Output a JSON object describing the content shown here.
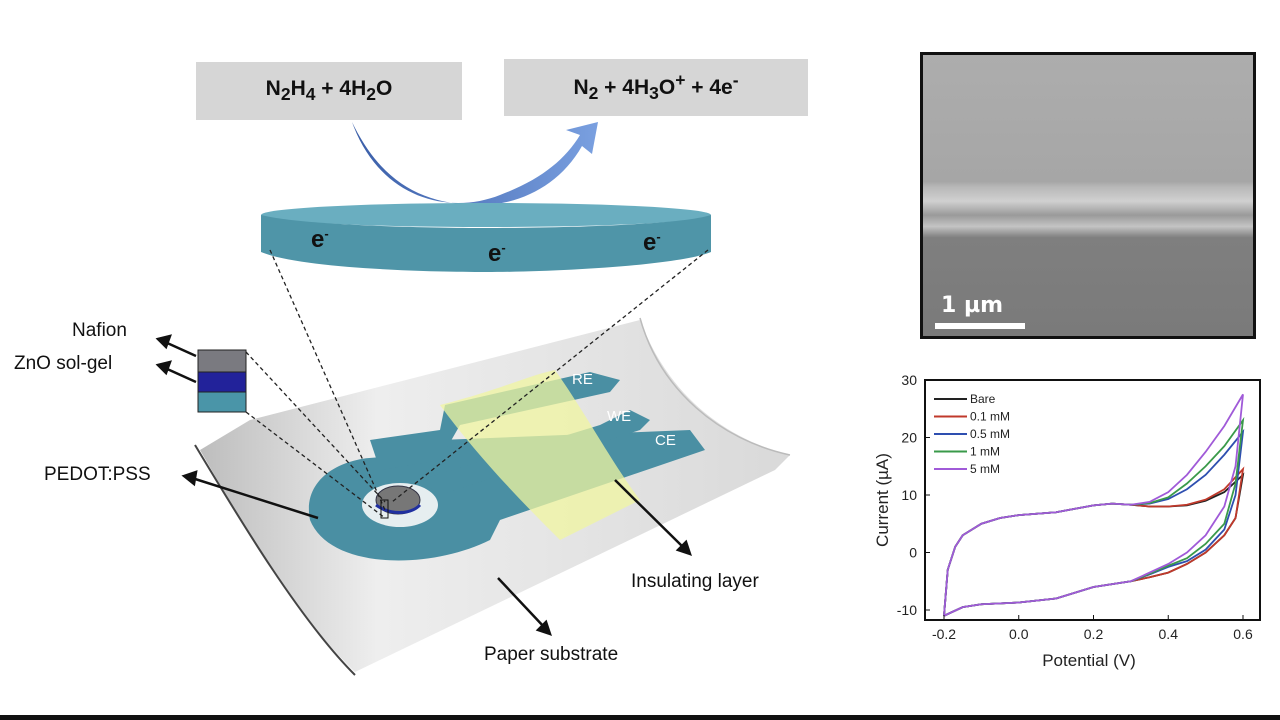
{
  "reaction": {
    "reactants": {
      "a": "N",
      "a_sub": "2",
      "b": "H",
      "b_sub": "4",
      "c": " + 4H",
      "c_sub": "2",
      "d": "O"
    },
    "products": {
      "a": "N",
      "a_sub": "2",
      "b": " + 4H",
      "b_sub": "3",
      "c": "O",
      "c_sup": "+",
      "d": " + 4e",
      "d_sup": "-"
    }
  },
  "electrons": [
    "e",
    "e",
    "e"
  ],
  "electron_sup": "-",
  "labels": {
    "nafion": "Nafion",
    "zno": "ZnO sol-gel",
    "pedot": "PEDOT:PSS",
    "insulating": "Insulating layer",
    "paper": "Paper substrate",
    "re": "RE",
    "we": "WE",
    "ce": "CE"
  },
  "sem": {
    "scale_label": "1 µm"
  },
  "colors": {
    "electrode": "#4a8fa3",
    "insulator": "#f0f5a0",
    "arrow": "#4f78c4"
  },
  "chart_data": {
    "type": "line",
    "xlabel": "Potential (V)",
    "ylabel": "Current (µA)",
    "xlim": [
      -0.25,
      0.65
    ],
    "ylim": [
      -12,
      30
    ],
    "xticks": [
      "-0.2",
      "0.0",
      "0.2",
      "0.4",
      "0.6"
    ],
    "yticks": [
      "-10",
      "0",
      "10",
      "20",
      "30"
    ],
    "legend_position": "top-left",
    "forward_x": [
      -0.2,
      -0.19,
      -0.17,
      -0.15,
      -0.1,
      -0.05,
      0,
      0.1,
      0.2,
      0.25,
      0.3,
      0.35,
      0.4,
      0.45,
      0.5,
      0.55,
      0.6
    ],
    "reverse_x": [
      0.6,
      0.58,
      0.55,
      0.5,
      0.45,
      0.4,
      0.35,
      0.3,
      0.2,
      0.1,
      0,
      -0.1,
      -0.15,
      -0.2
    ],
    "series": [
      {
        "name": "Bare",
        "color": "#222222",
        "forward": [
          -11,
          -3,
          1,
          3,
          5,
          6,
          6.5,
          7,
          8.2,
          8.5,
          8.3,
          8,
          8,
          8.2,
          9,
          10.5,
          13.5
        ],
        "reverse": [
          13.5,
          6,
          3,
          0,
          -2,
          -3.5,
          -4.3,
          -5,
          -6,
          -8,
          -8.7,
          -9,
          -9.5,
          -11
        ]
      },
      {
        "name": "0.1 mM",
        "color": "#c0392b",
        "forward": [
          -11,
          -3,
          1,
          3,
          5,
          6,
          6.5,
          7,
          8.2,
          8.5,
          8.3,
          8,
          8,
          8.3,
          9.2,
          11,
          14.5
        ],
        "reverse": [
          14.5,
          6,
          3,
          0,
          -2,
          -3.5,
          -4.3,
          -5,
          -6,
          -8,
          -8.7,
          -9,
          -9.5,
          -11
        ]
      },
      {
        "name": "0.5 mM",
        "color": "#2e4fb0",
        "forward": [
          -11,
          -3,
          1,
          3,
          5,
          6,
          6.5,
          7,
          8.2,
          8.5,
          8.3,
          8.5,
          9.3,
          11,
          13.5,
          17,
          21
        ],
        "reverse": [
          21,
          10,
          4,
          0.5,
          -1.5,
          -2.5,
          -3.8,
          -5,
          -6,
          -8,
          -8.7,
          -9,
          -9.5,
          -11
        ]
      },
      {
        "name": "1 mM",
        "color": "#3a9a4a",
        "forward": [
          -11,
          -3,
          1,
          3,
          5,
          6,
          6.5,
          7,
          8.2,
          8.5,
          8.3,
          8.6,
          9.6,
          12,
          15,
          18.5,
          23
        ],
        "reverse": [
          23,
          12,
          5,
          1.5,
          -1,
          -2.3,
          -3.7,
          -5,
          -6,
          -8,
          -8.7,
          -9,
          -9.5,
          -11
        ]
      },
      {
        "name": "5 mM",
        "color": "#a05ad8",
        "forward": [
          -11,
          -3,
          1,
          3,
          5,
          6,
          6.5,
          7,
          8.2,
          8.5,
          8.3,
          8.8,
          10.5,
          13.5,
          17.5,
          22,
          27.5
        ],
        "reverse": [
          27.5,
          15,
          8,
          3,
          0,
          -2,
          -3.5,
          -5,
          -6,
          -8,
          -8.7,
          -9,
          -9.5,
          -11
        ]
      }
    ]
  }
}
